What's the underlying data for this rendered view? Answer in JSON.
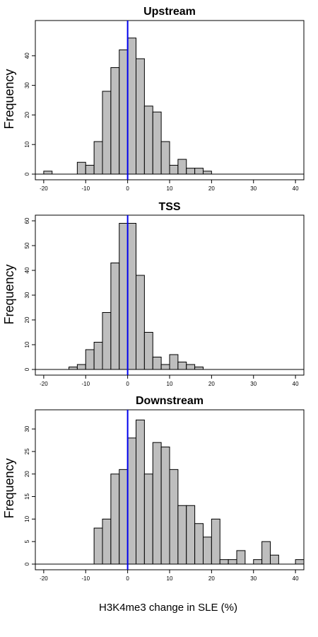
{
  "colors": {
    "bar_fill": "#bebebe",
    "bar_stroke": "#000000",
    "zero_line": "#0000ee",
    "axis": "#000000"
  },
  "xlabel": "H3K4me3 change in SLE (%)",
  "chart_data": [
    {
      "type": "bar",
      "title": "Upstream",
      "ylabel": "Frequency",
      "xlim": [
        -22,
        42
      ],
      "ylim": [
        0,
        50
      ],
      "xticks": [
        -20,
        -10,
        0,
        10,
        20,
        30,
        40
      ],
      "yticks": [
        0,
        10,
        20,
        30,
        40
      ],
      "bin_width": 2,
      "bins_left": [
        -20,
        -18,
        -16,
        -14,
        -12,
        -10,
        -8,
        -6,
        -4,
        -2,
        0,
        2,
        4,
        6,
        8,
        10,
        12,
        14,
        16,
        18
      ],
      "values": [
        1,
        0,
        0,
        0,
        4,
        3,
        11,
        28,
        36,
        42,
        46,
        39,
        23,
        21,
        11,
        3,
        5,
        2,
        2,
        1
      ],
      "reference_line_x": 0
    },
    {
      "type": "bar",
      "title": "TSS",
      "ylabel": "Frequency",
      "xlim": [
        -22,
        42
      ],
      "ylim": [
        0,
        60
      ],
      "xticks": [
        -20,
        -10,
        0,
        10,
        20,
        30,
        40
      ],
      "yticks": [
        0,
        10,
        20,
        30,
        40,
        50,
        60
      ],
      "bin_width": 2,
      "bins_left": [
        -14,
        -12,
        -10,
        -8,
        -6,
        -4,
        -2,
        0,
        2,
        4,
        6,
        8,
        10,
        12,
        14,
        16
      ],
      "values": [
        1,
        2,
        8,
        11,
        23,
        43,
        59,
        59,
        38,
        15,
        5,
        2,
        6,
        3,
        2,
        1
      ],
      "reference_line_x": 0
    },
    {
      "type": "bar",
      "title": "Downstream",
      "ylabel": "Frequency",
      "xlim": [
        -22,
        42
      ],
      "ylim": [
        0,
        33
      ],
      "xticks": [
        -20,
        -10,
        0,
        10,
        20,
        30,
        40
      ],
      "yticks": [
        0,
        5,
        10,
        15,
        20,
        25,
        30
      ],
      "bin_width": 2,
      "bins_left": [
        -8,
        -6,
        -4,
        -2,
        0,
        2,
        4,
        6,
        8,
        10,
        12,
        14,
        16,
        18,
        20,
        22,
        24,
        26,
        28,
        30,
        32,
        34,
        36,
        38,
        40
      ],
      "values": [
        8,
        10,
        20,
        21,
        28,
        32,
        20,
        27,
        26,
        21,
        13,
        13,
        9,
        6,
        10,
        1,
        1,
        3,
        0,
        1,
        5,
        2,
        0,
        0,
        1
      ],
      "reference_line_x": 0
    }
  ]
}
